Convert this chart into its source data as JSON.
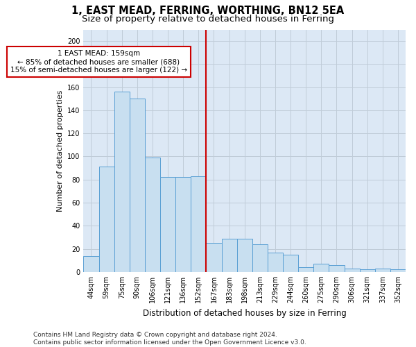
{
  "title": "1, EAST MEAD, FERRING, WORTHING, BN12 5EA",
  "subtitle": "Size of property relative to detached houses in Ferring",
  "xlabel": "Distribution of detached houses by size in Ferring",
  "ylabel": "Number of detached properties",
  "categories": [
    "44sqm",
    "59sqm",
    "75sqm",
    "90sqm",
    "106sqm",
    "121sqm",
    "136sqm",
    "152sqm",
    "167sqm",
    "183sqm",
    "198sqm",
    "213sqm",
    "229sqm",
    "244sqm",
    "260sqm",
    "275sqm",
    "290sqm",
    "306sqm",
    "321sqm",
    "337sqm",
    "352sqm"
  ],
  "values": [
    14,
    91,
    156,
    150,
    99,
    82,
    82,
    83,
    25,
    29,
    29,
    24,
    17,
    15,
    4,
    7,
    6,
    3,
    2,
    3,
    2
  ],
  "bar_color": "#c8dff0",
  "bar_edge_color": "#5a9fd4",
  "bar_edge_width": 0.7,
  "vline_x_index": 8,
  "vline_color": "#cc0000",
  "vline_label": "1 EAST MEAD: 159sqm",
  "annotation_line1": "← 85% of detached houses are smaller (688)",
  "annotation_line2": "15% of semi-detached houses are larger (122) →",
  "annotation_box_color": "#cc0000",
  "annotation_bg": "#ffffff",
  "ylim": [
    0,
    210
  ],
  "yticks": [
    0,
    20,
    40,
    60,
    80,
    100,
    120,
    140,
    160,
    180,
    200
  ],
  "grid_color": "#c0ccd8",
  "bg_color": "#dce8f5",
  "footer_line1": "Contains HM Land Registry data © Crown copyright and database right 2024.",
  "footer_line2": "Contains public sector information licensed under the Open Government Licence v3.0.",
  "title_fontsize": 10.5,
  "subtitle_fontsize": 9.5,
  "xlabel_fontsize": 8.5,
  "ylabel_fontsize": 8,
  "tick_fontsize": 7,
  "footer_fontsize": 6.5,
  "annot_fontsize": 7.5
}
